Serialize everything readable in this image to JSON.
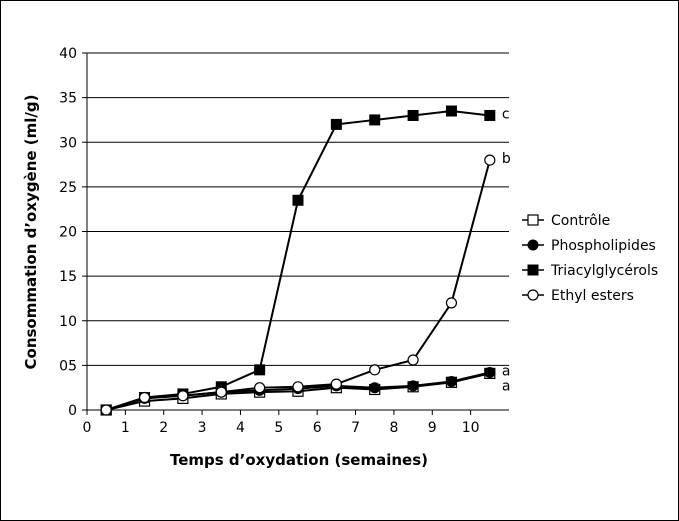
{
  "chart_data": {
    "type": "line",
    "title": "",
    "xlabel": "Temps d’oxydation (semaines)",
    "ylabel": "Consommation d’oxygène (ml/g)",
    "xlim": [
      0,
      11
    ],
    "ylim": [
      0,
      40
    ],
    "x_ticks": [
      "0",
      "1",
      "2",
      "3",
      "4",
      "5",
      "6",
      "7",
      "8",
      "9",
      "10"
    ],
    "y_ticks": [
      "0",
      "05",
      "10",
      "15",
      "20",
      "25",
      "30",
      "35",
      "40"
    ],
    "grid": "horizontal",
    "legend_position": "right",
    "x": [
      0.5,
      1.5,
      2.5,
      3.5,
      4.5,
      5.5,
      6.5,
      7.5,
      8.5,
      9.5,
      10.5
    ],
    "series": [
      {
        "name": "Contrôle",
        "marker": "open-square",
        "values": [
          0,
          1.0,
          1.3,
          1.8,
          2.0,
          2.1,
          2.5,
          2.3,
          2.6,
          3.1,
          4.1
        ],
        "end_label": "a"
      },
      {
        "name": "Phospholipides",
        "marker": "filled-circle",
        "values": [
          0,
          1.3,
          1.6,
          2.0,
          2.2,
          2.4,
          2.7,
          2.5,
          2.7,
          3.2,
          4.2
        ],
        "end_label": "a"
      },
      {
        "name": "Triacylglycérols",
        "marker": "filled-square",
        "values": [
          0,
          1.4,
          1.8,
          2.6,
          4.5,
          23.5,
          32,
          32.5,
          33,
          33.5,
          33
        ],
        "end_label": "c"
      },
      {
        "name": "Ethyl esters",
        "marker": "open-circle",
        "values": [
          0,
          1.4,
          1.6,
          2.0,
          2.5,
          2.6,
          2.9,
          4.5,
          5.6,
          12,
          28
        ],
        "end_label": "b"
      }
    ]
  }
}
